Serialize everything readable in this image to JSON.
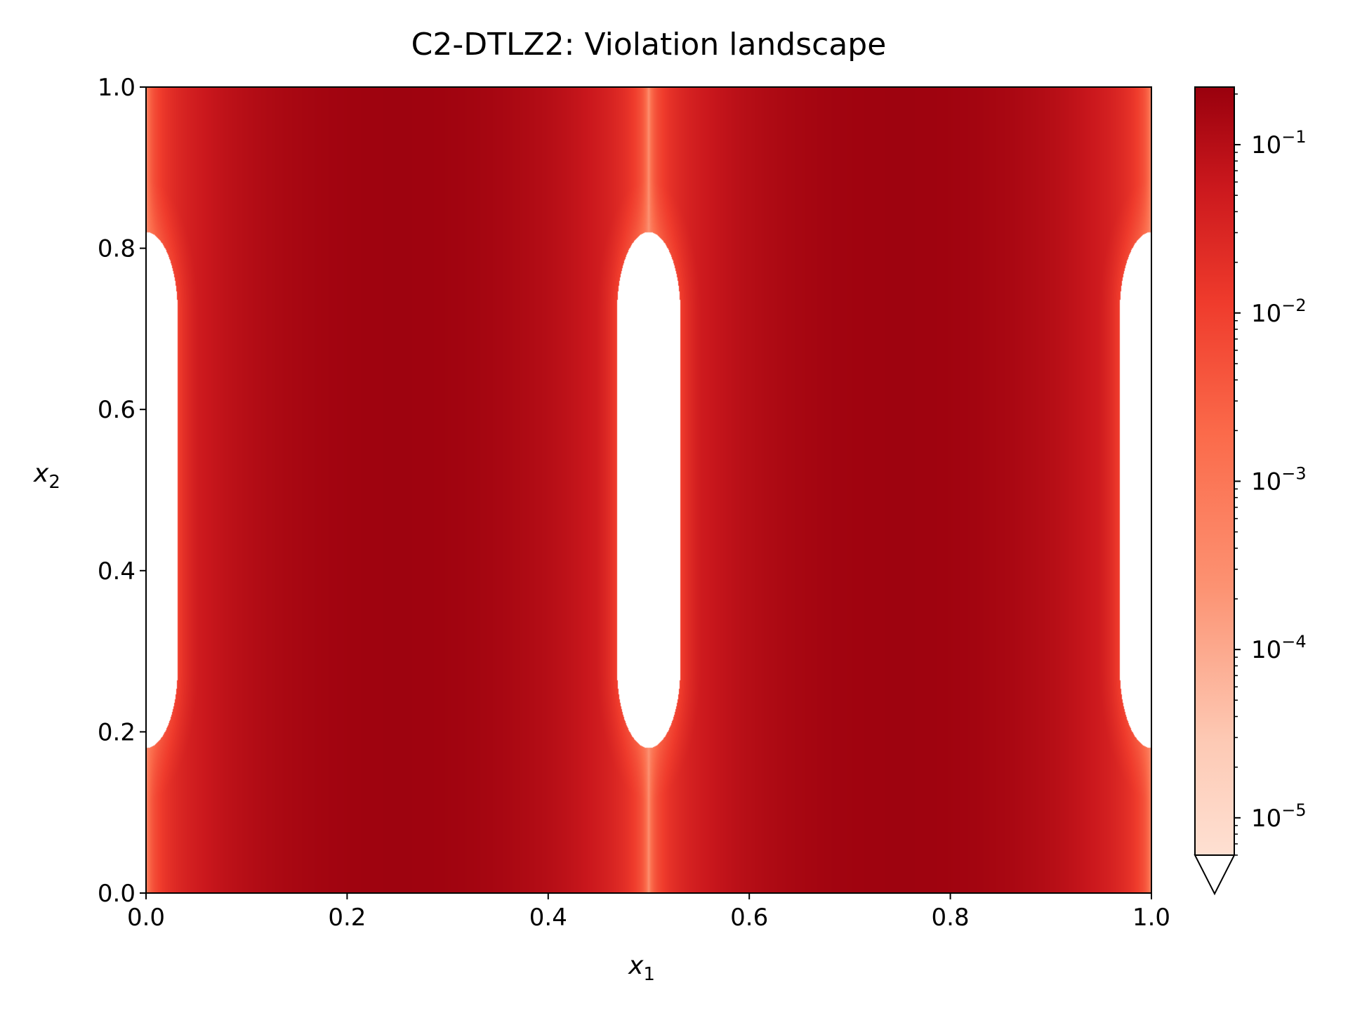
{
  "chart_data": {
    "type": "heatmap",
    "title": "C2-DTLZ2: Violation landscape",
    "xlabel": {
      "main": "x",
      "sub": "1"
    },
    "ylabel": {
      "main": "x",
      "sub": "2"
    },
    "xlim": [
      0.0,
      1.0
    ],
    "ylim": [
      0.0,
      1.0
    ],
    "xticks": [
      "0.0",
      "0.2",
      "0.4",
      "0.6",
      "0.8",
      "1.0"
    ],
    "yticks": [
      "0.0",
      "0.2",
      "0.4",
      "0.6",
      "0.8",
      "1.0"
    ],
    "colorbar": {
      "colormap": "Reds",
      "scale": "log",
      "range": [
        6e-06,
        0.22
      ],
      "extend": "min",
      "ticks": [
        {
          "value": 1e-05,
          "base": "10",
          "exp": "−5"
        },
        {
          "value": 0.0001,
          "base": "10",
          "exp": "−4"
        },
        {
          "value": 0.001,
          "base": "10",
          "exp": "−3"
        },
        {
          "value": 0.01,
          "base": "10",
          "exp": "−2"
        },
        {
          "value": 0.1,
          "base": "10",
          "exp": "−1"
        }
      ]
    },
    "feasible_regions_zero_violation": [
      {
        "x_center": 0.0,
        "y_range": [
          0.18,
          0.82
        ],
        "x_halfwidth": 0.063
      },
      {
        "x_center": 0.5,
        "y_range": [
          0.18,
          0.82
        ],
        "x_halfwidth": 0.063
      },
      {
        "x_center": 1.0,
        "y_range": [
          0.18,
          0.82
        ],
        "x_halfwidth": 0.063
      }
    ],
    "max_violation_columns_x": [
      0.25,
      0.75
    ],
    "colors": {
      "low": "#fee0d2",
      "high": "#99000d",
      "feasible": "#ffffff"
    }
  }
}
